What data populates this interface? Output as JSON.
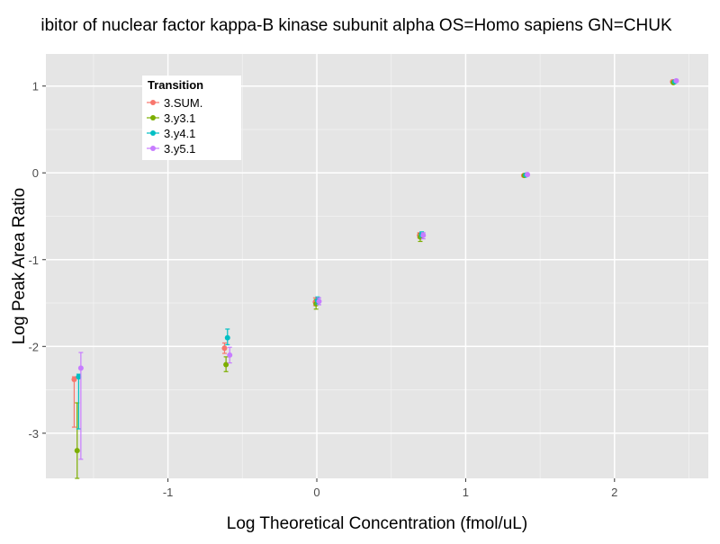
{
  "chart_data": {
    "type": "scatter",
    "title": "ibitor of nuclear factor kappa-B kinase subunit alpha OS=Homo sapiens GN=CHUK",
    "xlabel": "Log Theoretical Concentration (fmol/uL)",
    "ylabel": "Log Peak Area Ratio",
    "xlim": [
      -1.82,
      2.63
    ],
    "ylim": [
      -3.52,
      1.37
    ],
    "x_ticks": [
      -1,
      0,
      1,
      2
    ],
    "x_tick_labels": [
      "-1",
      "0",
      "1",
      "2"
    ],
    "y_ticks": [
      -3,
      -2,
      -1,
      0,
      1
    ],
    "y_tick_labels": [
      "-3",
      "-2",
      "-1",
      "0",
      "1"
    ],
    "grid": true,
    "legend": {
      "title": "Transition",
      "placement": "top-left"
    },
    "series": [
      {
        "name": "3.SUM.",
        "color": "#F8766D",
        "points": [
          {
            "x": -1.63,
            "y": -2.38,
            "lo": -2.93,
            "hi": -2.35
          },
          {
            "x": -0.62,
            "y": -2.02,
            "lo": -2.08,
            "hi": -1.96
          },
          {
            "x": -0.01,
            "y": -1.49,
            "lo": -1.53,
            "hi": -1.44
          },
          {
            "x": 0.69,
            "y": -0.72,
            "lo": -0.75,
            "hi": -0.69
          },
          {
            "x": 1.39,
            "y": -0.03,
            "lo": -0.04,
            "hi": -0.02
          },
          {
            "x": 2.39,
            "y": 1.05,
            "lo": 1.04,
            "hi": 1.06
          }
        ]
      },
      {
        "name": "3.y3.1",
        "color": "#7CAE00",
        "points": [
          {
            "x": -1.61,
            "y": -3.2,
            "lo": -3.52,
            "hi": -2.65
          },
          {
            "x": -0.61,
            "y": -2.21,
            "lo": -2.29,
            "hi": -2.12
          },
          {
            "x": -0.005,
            "y": -1.51,
            "lo": -1.57,
            "hi": -1.46
          },
          {
            "x": 0.695,
            "y": -0.74,
            "lo": -0.79,
            "hi": -0.7
          },
          {
            "x": 1.395,
            "y": -0.03,
            "lo": -0.04,
            "hi": -0.02
          },
          {
            "x": 2.395,
            "y": 1.04,
            "lo": 1.03,
            "hi": 1.05
          }
        ]
      },
      {
        "name": "3.y4.1",
        "color": "#00BFC4",
        "points": [
          {
            "x": -1.6,
            "y": -2.35,
            "lo": -2.95,
            "hi": -2.32
          },
          {
            "x": -0.6,
            "y": -1.9,
            "lo": -1.98,
            "hi": -1.8
          },
          {
            "x": 0.005,
            "y": -1.47,
            "lo": -1.51,
            "hi": -1.43
          },
          {
            "x": 0.705,
            "y": -0.71,
            "lo": -0.74,
            "hi": -0.68
          },
          {
            "x": 1.405,
            "y": -0.025,
            "lo": -0.035,
            "hi": -0.015
          },
          {
            "x": 2.405,
            "y": 1.05,
            "lo": 1.04,
            "hi": 1.06
          }
        ]
      },
      {
        "name": "3.y5.1",
        "color": "#C77CFF",
        "points": [
          {
            "x": -1.585,
            "y": -2.25,
            "lo": -3.3,
            "hi": -2.07
          },
          {
            "x": -0.585,
            "y": -2.1,
            "lo": -2.19,
            "hi": -2.01
          },
          {
            "x": 0.015,
            "y": -1.48,
            "lo": -1.52,
            "hi": -1.44
          },
          {
            "x": 0.715,
            "y": -0.72,
            "lo": -0.76,
            "hi": -0.69
          },
          {
            "x": 1.415,
            "y": -0.02,
            "lo": -0.03,
            "hi": -0.01
          },
          {
            "x": 2.415,
            "y": 1.06,
            "lo": 1.05,
            "hi": 1.07
          }
        ]
      }
    ]
  }
}
